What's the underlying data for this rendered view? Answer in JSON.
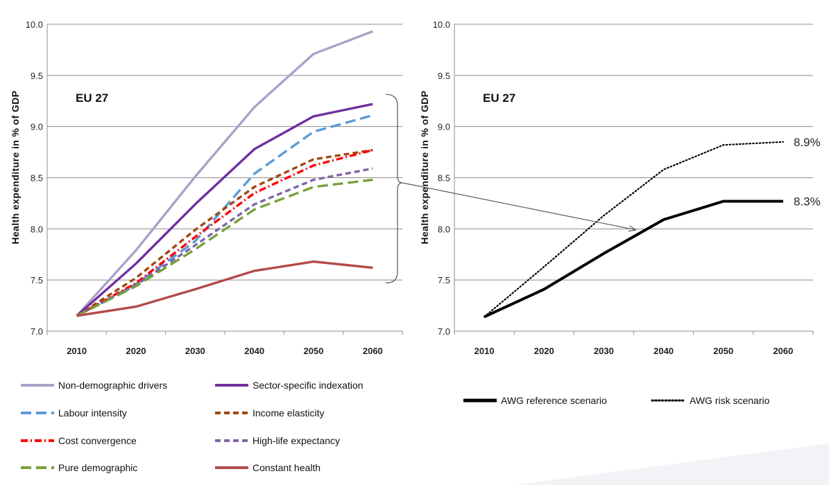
{
  "chart_data": [
    {
      "type": "line",
      "title": "EU 27",
      "ylabel": "Health expenditure in % of GDP",
      "xlabel": "",
      "x": [
        2010,
        2020,
        2030,
        2040,
        2050,
        2060
      ],
      "xticks": [
        "2010",
        "2020",
        "2030",
        "2040",
        "2050",
        "2060"
      ],
      "ylim": [
        7.0,
        10.0
      ],
      "yticks": [
        "7.0",
        "7.5",
        "8.0",
        "8.5",
        "9.0",
        "9.5",
        "10.0"
      ],
      "grid": "horizontal",
      "legend_position": "bottom",
      "series": [
        {
          "name": "Non-demographic drivers",
          "color": "#a9a2c8",
          "style": "solid",
          "values": [
            7.15,
            7.79,
            8.51,
            9.19,
            9.71,
            9.93
          ]
        },
        {
          "name": "Sector-specific indexation",
          "color": "#7030a0",
          "style": "solid",
          "values": [
            7.15,
            7.66,
            8.24,
            8.78,
            9.1,
            9.22
          ]
        },
        {
          "name": "Labour intensity",
          "color": "#5b9bd5",
          "style": "longdash",
          "values": [
            7.15,
            7.46,
            7.88,
            8.54,
            8.95,
            9.11
          ]
        },
        {
          "name": "Income elasticity",
          "color": "#9e480e",
          "style": "dash",
          "values": [
            7.15,
            7.52,
            7.99,
            8.41,
            8.68,
            8.77
          ]
        },
        {
          "name": "Cost convergence",
          "color": "#ff0000",
          "style": "dashdot",
          "values": [
            7.15,
            7.47,
            7.92,
            8.35,
            8.62,
            8.77
          ]
        },
        {
          "name": "High-life expectancy",
          "color": "#7f64a8",
          "style": "dash",
          "values": [
            7.15,
            7.45,
            7.84,
            8.24,
            8.48,
            8.59
          ]
        },
        {
          "name": "Pure demographic",
          "color": "#77a13b",
          "style": "longdash",
          "values": [
            7.15,
            7.44,
            7.8,
            8.19,
            8.41,
            8.48
          ]
        },
        {
          "name": "Constant health",
          "color": "#b24a4a",
          "style": "solid",
          "values": [
            7.15,
            7.24,
            7.41,
            7.59,
            7.68,
            7.62
          ]
        }
      ]
    },
    {
      "type": "line",
      "title": "EU 27",
      "ylabel": "Health expenditure in % of GDP",
      "xlabel": "",
      "x": [
        2010,
        2020,
        2030,
        2040,
        2050,
        2060
      ],
      "xticks": [
        "2010",
        "2020",
        "2030",
        "2040",
        "2050",
        "2060"
      ],
      "ylim": [
        7.0,
        10.0
      ],
      "yticks": [
        "7.0",
        "7.5",
        "8.0",
        "8.5",
        "9.0",
        "9.5",
        "10.0"
      ],
      "grid": "horizontal",
      "legend_position": "bottom",
      "series": [
        {
          "name": "AWG reference scenario",
          "color": "#000000",
          "style": "solid",
          "values": [
            7.14,
            7.41,
            7.76,
            8.09,
            8.27,
            8.27
          ],
          "end_label": "8.3%"
        },
        {
          "name": "AWG risk scenario",
          "color": "#000000",
          "style": "dotted",
          "values": [
            7.14,
            7.63,
            8.13,
            8.58,
            8.82,
            8.85
          ],
          "end_label": "8.9%"
        }
      ]
    }
  ]
}
